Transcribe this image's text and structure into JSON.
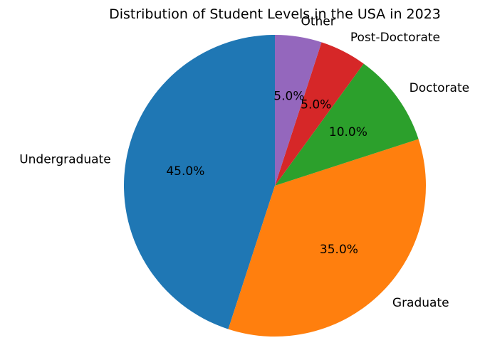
{
  "chart_data": {
    "type": "pie",
    "title": "Distribution of Student Levels in the USA in 2023",
    "start_angle_deg": 90,
    "direction": "counterclockwise",
    "slices": [
      {
        "label": "Undergraduate",
        "value": 45.0,
        "pct_label": "45.0%",
        "color": "#1f77b4"
      },
      {
        "label": "Graduate",
        "value": 35.0,
        "pct_label": "35.0%",
        "color": "#ff7f0e"
      },
      {
        "label": "Doctorate",
        "value": 10.0,
        "pct_label": "10.0%",
        "color": "#2ca02c"
      },
      {
        "label": "Post-Doctorate",
        "value": 5.0,
        "pct_label": "5.0%",
        "color": "#d62728"
      },
      {
        "label": "Other",
        "value": 5.0,
        "pct_label": "5.0%",
        "color": "#9467bd"
      }
    ]
  }
}
